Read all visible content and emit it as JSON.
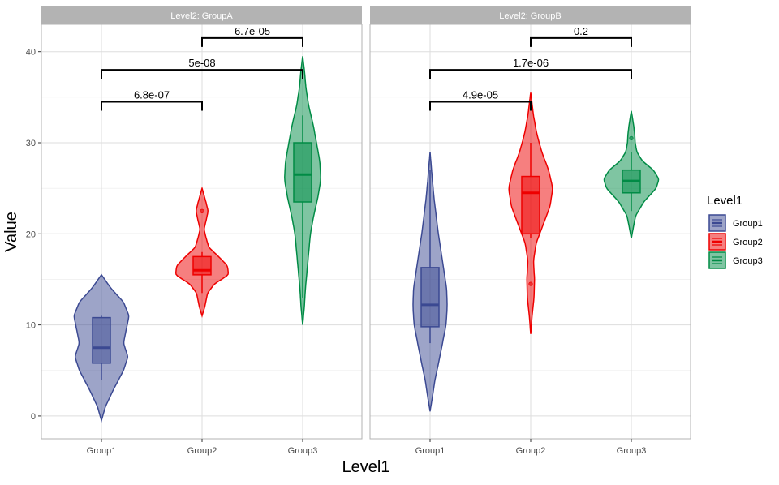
{
  "chart_data": {
    "type": "violin",
    "ylabel": "Value",
    "xlabel": "Level1",
    "ylim": [
      -2.5,
      43
    ],
    "yticks": [
      0,
      10,
      20,
      30,
      40
    ],
    "categories": [
      "Group1",
      "Group2",
      "Group3"
    ],
    "legend": {
      "title": "Level1",
      "position": "right",
      "entries": [
        "Group1",
        "Group2",
        "Group3"
      ]
    },
    "colors": {
      "Group1": "#3B4992",
      "Group2": "#EE0000",
      "Group3": "#008B45",
      "strip": "#B3B3B3",
      "grid": "#DDDDDD"
    },
    "panels": [
      {
        "title": "Level2: GroupA",
        "groups": [
          {
            "name": "Group1",
            "violin_min": -0.5,
            "violin_max": 15.5,
            "shape": [
              [
                -0.5,
                0.0
              ],
              [
                1,
                0.14
              ],
              [
                3,
                0.45
              ],
              [
                5,
                0.8
              ],
              [
                6.5,
                0.96
              ],
              [
                8,
                0.8
              ],
              [
                9.5,
                0.9
              ],
              [
                11,
                1.0
              ],
              [
                12.5,
                0.8
              ],
              [
                14,
                0.35
              ],
              [
                15.5,
                0.0
              ]
            ],
            "box": {
              "q1": 5.8,
              "median": 7.5,
              "q3": 10.8,
              "whisker_low": 4.0,
              "whisker_high": 11.0
            },
            "outliers": []
          },
          {
            "name": "Group2",
            "violin_min": 11.0,
            "violin_max": 25.0,
            "shape": [
              [
                11,
                0.0
              ],
              [
                12,
                0.1
              ],
              [
                13.5,
                0.2
              ],
              [
                14.5,
                0.45
              ],
              [
                15.5,
                0.96
              ],
              [
                16.5,
                0.92
              ],
              [
                17.5,
                0.6
              ],
              [
                18.5,
                0.25
              ],
              [
                19.5,
                0.15
              ],
              [
                20.5,
                0.07
              ],
              [
                21.5,
                0.15
              ],
              [
                22.5,
                0.22
              ],
              [
                23.5,
                0.14
              ],
              [
                25,
                0.0
              ]
            ],
            "box": {
              "q1": 15.5,
              "median": 16.0,
              "q3": 17.5,
              "whisker_low": 13.5,
              "whisker_high": 18.0
            },
            "outliers": [
              22.5
            ]
          },
          {
            "name": "Group3",
            "violin_min": 10.0,
            "violin_max": 39.5,
            "shape": [
              [
                10,
                0.0
              ],
              [
                12,
                0.06
              ],
              [
                14,
                0.1
              ],
              [
                16,
                0.16
              ],
              [
                18,
                0.22
              ],
              [
                20,
                0.28
              ],
              [
                22,
                0.4
              ],
              [
                24,
                0.55
              ],
              [
                26,
                0.66
              ],
              [
                28,
                0.62
              ],
              [
                30,
                0.5
              ],
              [
                32,
                0.38
              ],
              [
                34,
                0.22
              ],
              [
                36,
                0.12
              ],
              [
                38,
                0.06
              ],
              [
                39.5,
                0.0
              ]
            ],
            "box": {
              "q1": 23.5,
              "median": 26.5,
              "q3": 30.0,
              "whisker_low": 13.0,
              "whisker_high": 33.0
            },
            "outliers": []
          }
        ],
        "comparisons": [
          {
            "from": "Group1",
            "to": "Group2",
            "y": 34.5,
            "label": "6.8e-07"
          },
          {
            "from": "Group1",
            "to": "Group3",
            "y": 38.0,
            "label": "5e-08"
          },
          {
            "from": "Group2",
            "to": "Group3",
            "y": 41.5,
            "label": "6.7e-05"
          }
        ]
      },
      {
        "title": "Level2: GroupB",
        "groups": [
          {
            "name": "Group1",
            "violin_min": 0.5,
            "violin_max": 29.0,
            "shape": [
              [
                0.5,
                0.0
              ],
              [
                2,
                0.08
              ],
              [
                4,
                0.18
              ],
              [
                6,
                0.32
              ],
              [
                8,
                0.45
              ],
              [
                10,
                0.58
              ],
              [
                12,
                0.62
              ],
              [
                14,
                0.6
              ],
              [
                16,
                0.5
              ],
              [
                18,
                0.4
              ],
              [
                20,
                0.3
              ],
              [
                22,
                0.22
              ],
              [
                24,
                0.14
              ],
              [
                26,
                0.08
              ],
              [
                29,
                0.0
              ]
            ],
            "box": {
              "q1": 9.8,
              "median": 12.2,
              "q3": 16.3,
              "whisker_low": 8.0,
              "whisker_high": 27.0
            },
            "outliers": []
          },
          {
            "name": "Group2",
            "violin_min": 9.0,
            "violin_max": 35.5,
            "shape": [
              [
                9,
                0.0
              ],
              [
                11,
                0.05
              ],
              [
                13,
                0.12
              ],
              [
                15,
                0.14
              ],
              [
                17,
                0.1
              ],
              [
                19,
                0.2
              ],
              [
                21,
                0.45
              ],
              [
                23,
                0.7
              ],
              [
                25,
                0.8
              ],
              [
                27,
                0.65
              ],
              [
                29,
                0.4
              ],
              [
                31,
                0.22
              ],
              [
                33,
                0.1
              ],
              [
                35.5,
                0.0
              ]
            ],
            "box": {
              "q1": 20.0,
              "median": 24.5,
              "q3": 26.3,
              "whisker_low": 19.5,
              "whisker_high": 30.0
            },
            "outliers": [
              14.5
            ]
          },
          {
            "name": "Group3",
            "violin_min": 19.5,
            "violin_max": 33.5,
            "shape": [
              [
                19.5,
                0.0
              ],
              [
                20.5,
                0.06
              ],
              [
                22,
                0.16
              ],
              [
                23.5,
                0.45
              ],
              [
                25,
                0.9
              ],
              [
                26,
                1.0
              ],
              [
                27,
                0.8
              ],
              [
                28,
                0.4
              ],
              [
                29,
                0.2
              ],
              [
                30,
                0.14
              ],
              [
                31,
                0.12
              ],
              [
                32,
                0.08
              ],
              [
                33.5,
                0.0
              ]
            ],
            "box": {
              "q1": 24.5,
              "median": 25.8,
              "q3": 27.0,
              "whisker_low": 22.5,
              "whisker_high": 29.0
            },
            "outliers": [
              30.5
            ]
          }
        ],
        "comparisons": [
          {
            "from": "Group1",
            "to": "Group2",
            "y": 34.5,
            "label": "4.9e-05"
          },
          {
            "from": "Group1",
            "to": "Group3",
            "y": 38.0,
            "label": "1.7e-06"
          },
          {
            "from": "Group2",
            "to": "Group3",
            "y": 41.5,
            "label": "0.2"
          }
        ]
      }
    ]
  }
}
